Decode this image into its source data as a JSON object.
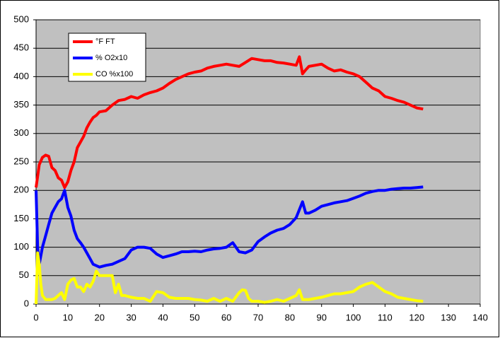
{
  "chart_data": {
    "type": "line",
    "xlim": [
      0,
      140
    ],
    "xticks": [
      0,
      10,
      20,
      30,
      40,
      50,
      60,
      70,
      80,
      90,
      100,
      110,
      120,
      130,
      140
    ],
    "ylim": [
      0,
      500
    ],
    "yticks": [
      0,
      50,
      100,
      150,
      200,
      250,
      300,
      350,
      400,
      450,
      500
    ],
    "grid": true,
    "legend": "upper-left",
    "series": [
      {
        "name": "°F FT",
        "color": "#ff0000",
        "x": [
          0,
          1,
          2,
          3,
          4,
          5,
          6,
          7,
          8,
          9,
          10,
          11,
          12,
          13,
          14,
          15,
          16,
          17,
          18,
          19,
          20,
          22,
          24,
          26,
          28,
          30,
          32,
          34,
          36,
          38,
          40,
          42,
          44,
          46,
          48,
          50,
          52,
          54,
          56,
          58,
          60,
          62,
          64,
          66,
          68,
          70,
          72,
          74,
          76,
          78,
          80,
          82,
          83,
          84,
          85,
          86,
          88,
          90,
          92,
          94,
          96,
          98,
          100,
          102,
          104,
          106,
          108,
          110,
          112,
          114,
          116,
          118,
          120,
          122
        ],
        "values": [
          205,
          245,
          258,
          262,
          260,
          240,
          235,
          222,
          218,
          205,
          215,
          235,
          250,
          275,
          285,
          295,
          310,
          320,
          328,
          332,
          338,
          340,
          350,
          358,
          360,
          365,
          362,
          368,
          372,
          375,
          380,
          388,
          395,
          400,
          405,
          408,
          410,
          415,
          418,
          420,
          422,
          420,
          418,
          425,
          432,
          430,
          428,
          428,
          425,
          424,
          422,
          420,
          435,
          405,
          412,
          418,
          420,
          422,
          415,
          410,
          412,
          408,
          405,
          400,
          390,
          380,
          375,
          365,
          362,
          358,
          355,
          350,
          345,
          343
        ]
      },
      {
        "name": "% O2x10",
        "color": "#0000ff",
        "x": [
          0,
          0.5,
          1,
          2,
          3,
          4,
          5,
          6,
          7,
          8,
          9,
          10,
          11,
          12,
          13,
          14,
          15,
          16,
          17,
          18,
          20,
          22,
          24,
          26,
          28,
          30,
          32,
          34,
          36,
          38,
          40,
          42,
          44,
          46,
          48,
          50,
          52,
          54,
          56,
          58,
          60,
          62,
          64,
          66,
          68,
          70,
          72,
          74,
          76,
          78,
          80,
          82,
          84,
          85,
          86,
          88,
          90,
          92,
          94,
          96,
          98,
          100,
          102,
          104,
          106,
          108,
          110,
          112,
          114,
          116,
          118,
          120,
          122
        ],
        "values": [
          200,
          100,
          70,
          100,
          120,
          140,
          160,
          170,
          180,
          185,
          200,
          170,
          155,
          130,
          115,
          108,
          100,
          90,
          80,
          70,
          65,
          68,
          70,
          75,
          80,
          95,
          100,
          100,
          98,
          88,
          82,
          85,
          88,
          92,
          92,
          93,
          92,
          95,
          97,
          98,
          100,
          108,
          92,
          90,
          95,
          110,
          118,
          125,
          130,
          133,
          140,
          152,
          180,
          160,
          160,
          165,
          172,
          175,
          178,
          180,
          182,
          186,
          190,
          195,
          198,
          200,
          200,
          202,
          203,
          204,
          204,
          205,
          206
        ]
      },
      {
        "name": "CO %x100",
        "color": "#ffff00",
        "x": [
          0,
          0.5,
          1,
          1.5,
          2,
          3,
          4,
          5,
          6,
          7,
          8,
          9,
          10,
          11,
          12,
          13,
          14,
          15,
          16,
          17,
          18,
          19,
          20,
          22,
          24,
          25,
          26,
          27,
          28,
          30,
          32,
          34,
          36,
          38,
          40,
          42,
          44,
          46,
          48,
          50,
          52,
          54,
          56,
          58,
          60,
          62,
          64,
          65,
          66,
          67,
          68,
          70,
          72,
          74,
          76,
          78,
          80,
          82,
          83,
          84,
          86,
          88,
          90,
          92,
          94,
          96,
          98,
          100,
          102,
          104,
          106,
          108,
          110,
          112,
          114,
          116,
          118,
          120,
          122
        ],
        "values": [
          0,
          90,
          70,
          35,
          15,
          8,
          8,
          8,
          10,
          15,
          20,
          8,
          35,
          42,
          45,
          30,
          30,
          22,
          35,
          30,
          40,
          58,
          50,
          50,
          50,
          20,
          35,
          15,
          15,
          12,
          10,
          10,
          5,
          22,
          20,
          12,
          10,
          10,
          10,
          8,
          7,
          5,
          10,
          5,
          10,
          5,
          20,
          25,
          24,
          10,
          5,
          5,
          3,
          5,
          8,
          5,
          10,
          15,
          25,
          8,
          8,
          10,
          12,
          15,
          18,
          18,
          20,
          22,
          30,
          35,
          38,
          30,
          22,
          18,
          12,
          10,
          8,
          6,
          5
        ]
      }
    ]
  }
}
